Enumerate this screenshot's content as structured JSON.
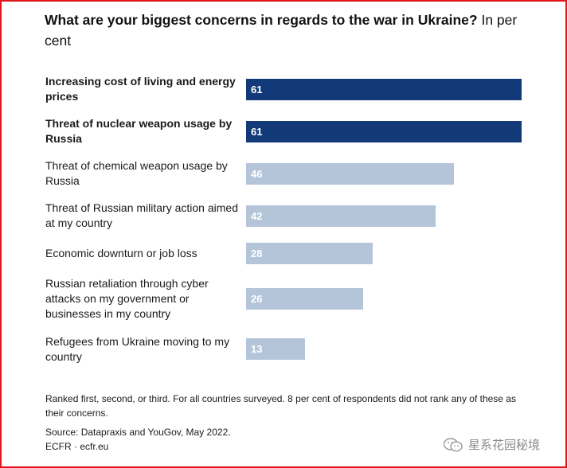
{
  "title": {
    "bold": "What are your biggest concerns in regards to the war in Ukraine?",
    "unit": "In per cent"
  },
  "colors": {
    "highlight": "#123a78",
    "default": "#b4c5da",
    "frame": "#e0161c"
  },
  "chart_data": {
    "type": "bar",
    "orientation": "horizontal",
    "title": "What are your biggest concerns in regards to the war in Ukraine? In per cent",
    "categories": [
      "Increasing cost of living and energy prices",
      "Threat of nuclear weapon usage by Russia",
      "Threat of chemical weapon usage by Russia",
      "Threat of Russian military action aimed at my country",
      "Economic downturn or job loss",
      "Russian retaliation through cyber attacks on my government or businesses in my country",
      "Refugees from Ukraine moving to my country"
    ],
    "values": [
      61,
      61,
      46,
      42,
      28,
      26,
      13
    ],
    "highlighted": [
      true,
      true,
      false,
      false,
      false,
      false,
      false
    ],
    "xlim": [
      0,
      61
    ],
    "grid": false,
    "data_labels": true
  },
  "footnotes": {
    "note": "Ranked first, second, or third. For all countries surveyed. 8 per cent of respondents did not rank any of these as their concerns.",
    "source": "Source: Datapraxis and YouGov, May 2022.",
    "credit": "ECFR · ecfr.eu"
  },
  "watermark": {
    "text": "星系花园秘境",
    "icon": "wechat-icon"
  }
}
